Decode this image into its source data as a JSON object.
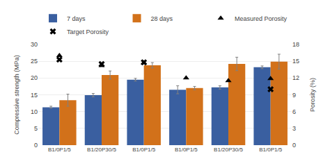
{
  "chart_data": {
    "type": "bar",
    "categories": [
      "B1/0P1/5",
      "B1/20P30/5",
      "B1/0P1/5",
      "B1/0P1/5",
      "B1/20P30/5",
      "B1/0P1/5"
    ],
    "series": [
      {
        "name": "7 days",
        "color": "#3A5FA0",
        "values": [
          11.3,
          14.9,
          19.5,
          16.5,
          17.2,
          23.2
        ],
        "errors": [
          0.3,
          0.5,
          0.4,
          1.2,
          0.5,
          0.4
        ]
      },
      {
        "name": "28 days",
        "color": "#D2711A",
        "values": [
          13.4,
          20.9,
          23.8,
          17.0,
          24.2,
          24.9
        ],
        "errors": [
          1.8,
          1.2,
          0.8,
          0.5,
          2.0,
          2.2
        ]
      },
      {
        "name": "Measured Porosity",
        "type": "scatter",
        "axis": "y2",
        "marker": "triangle-up",
        "color": "black",
        "values": [
          16.0,
          14.2,
          14.7,
          12.0,
          11.5,
          11.9
        ]
      },
      {
        "name": "Target Porosity",
        "type": "scatter",
        "axis": "y2",
        "marker": "x",
        "color": "black",
        "values": [
          15.3,
          14.5,
          14.8,
          null,
          null,
          10.0
        ]
      }
    ],
    "ylabel": "Compressive strength (MPa)",
    "y2label": "Porosity (%)",
    "ylim": [
      0,
      30
    ],
    "yticks": [
      0,
      5,
      10,
      15,
      20,
      25,
      30
    ],
    "y2lim": [
      0,
      18
    ],
    "y2ticks": [
      0,
      3,
      6,
      9,
      12,
      15,
      18
    ],
    "grid": true,
    "legend": "top"
  }
}
